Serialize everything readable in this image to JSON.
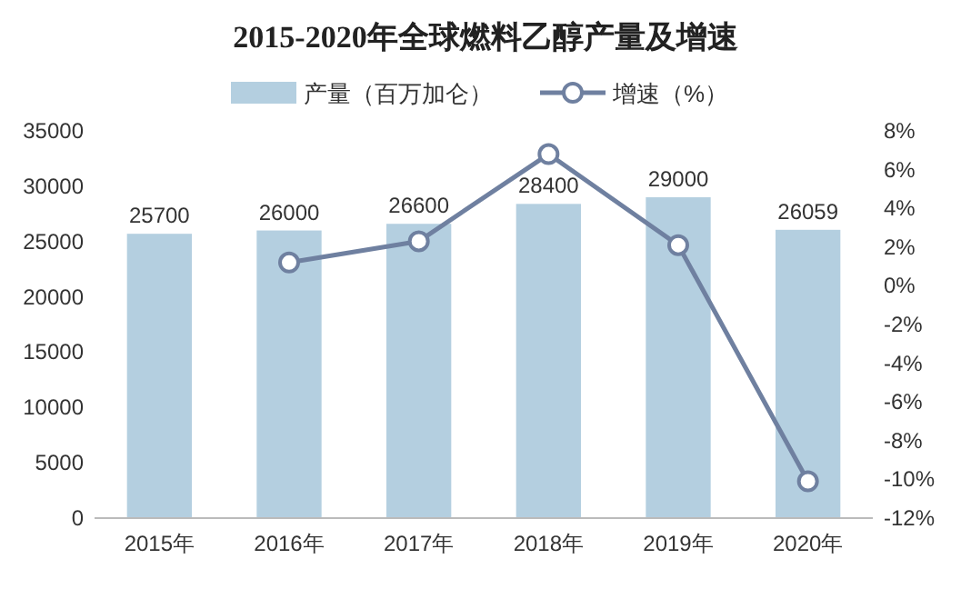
{
  "chart_data": {
    "type": "bar",
    "title": "2015-2020年全球燃料乙醇产量及增速",
    "categories": [
      "2015年",
      "2016年",
      "2017年",
      "2018年",
      "2019年",
      "2020年"
    ],
    "series": [
      {
        "name": "产量（百万加仑）",
        "color": "#b4cfe0",
        "values": [
          25700,
          26000,
          26600,
          28400,
          29000,
          26059
        ],
        "value_labels": [
          "25700",
          "26000",
          "26600",
          "28400",
          "29000",
          "26059"
        ]
      },
      {
        "name": "增速（%）",
        "type": "line",
        "axis": "y2",
        "color": "#6f80a0",
        "marker": "circle",
        "values": [
          null,
          1.2,
          2.3,
          6.8,
          2.1,
          -10.1
        ]
      }
    ],
    "ylim": [
      0,
      35000
    ],
    "yticks": [
      0,
      5000,
      10000,
      15000,
      20000,
      25000,
      30000,
      35000
    ],
    "y2lim": [
      -12,
      8
    ],
    "y2ticks": [
      {
        "value": -12,
        "label": "-12%"
      },
      {
        "value": -10,
        "label": "-10%"
      },
      {
        "value": -8,
        "label": "-8%"
      },
      {
        "value": -6,
        "label": "-6%"
      },
      {
        "value": -4,
        "label": "-4%"
      },
      {
        "value": -2,
        "label": "-2%"
      },
      {
        "value": 0,
        "label": "0%"
      },
      {
        "value": 2,
        "label": "2%"
      },
      {
        "value": 4,
        "label": "4%"
      },
      {
        "value": 6,
        "label": "6%"
      },
      {
        "value": 8,
        "label": "8%"
      }
    ],
    "legend": "top",
    "grid": false
  }
}
